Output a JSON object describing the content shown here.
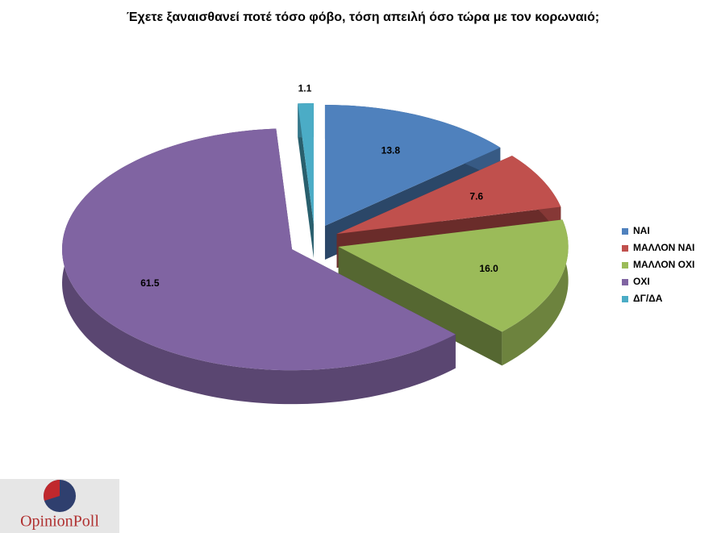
{
  "chart_data": {
    "type": "pie3d",
    "title": "Έχετε ξαναισθανεί ποτέ τόσο φόβο, τόση απειλή όσο τώρα με τον κορωναιό;",
    "categories": [
      "ΝΑΙ",
      "ΜΑΛΛΟΝ ΝΑΙ",
      "ΜΑΛΛΟΝ ΟΧΙ",
      "ΟΧΙ",
      "ΔΓ/ΔΑ"
    ],
    "values": [
      13.8,
      7.6,
      16.0,
      61.5,
      1.1
    ],
    "value_labels": [
      "13.8",
      "7.6",
      "16.0",
      "61.5",
      "1.1"
    ],
    "colors": [
      "#4f81bd",
      "#c0504d",
      "#9bbb59",
      "#8064a2",
      "#4bacc6"
    ],
    "legend": "right"
  },
  "source": "OpinionPoll"
}
